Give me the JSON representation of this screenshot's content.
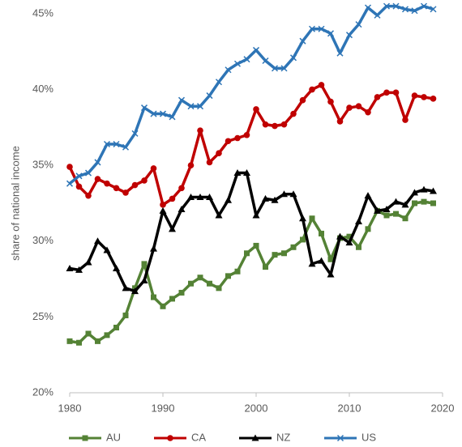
{
  "chart_data": {
    "type": "line",
    "y_label": "share of national income",
    "x": [
      1980,
      1981,
      1982,
      1983,
      1984,
      1985,
      1986,
      1987,
      1988,
      1989,
      1990,
      1991,
      1992,
      1993,
      1994,
      1995,
      1996,
      1997,
      1998,
      1999,
      2000,
      2001,
      2002,
      2003,
      2004,
      2005,
      2006,
      2007,
      2008,
      2009,
      2010,
      2011,
      2012,
      2013,
      2014,
      2015,
      2016,
      2017,
      2018,
      2019
    ],
    "series": [
      {
        "name": "AU",
        "color": "#548235",
        "marker": "square",
        "values": [
          23.4,
          23.3,
          23.9,
          23.4,
          23.8,
          24.3,
          25.1,
          26.9,
          28.5,
          26.3,
          25.7,
          26.2,
          26.6,
          27.2,
          27.6,
          27.2,
          26.9,
          27.7,
          28.0,
          29.2,
          29.7,
          28.3,
          29.1,
          29.2,
          29.6,
          30.1,
          31.5,
          30.5,
          28.8,
          30.2,
          30.3,
          29.6,
          30.8,
          32.0,
          31.7,
          31.8,
          31.5,
          32.5,
          32.6,
          32.5
        ]
      },
      {
        "name": "CA",
        "color": "#c00000",
        "marker": "circle",
        "values": [
          34.9,
          33.6,
          33.0,
          34.1,
          33.8,
          33.5,
          33.2,
          33.7,
          34.0,
          34.8,
          32.4,
          32.8,
          33.5,
          35.0,
          37.3,
          35.2,
          35.8,
          36.6,
          36.8,
          37.0,
          38.7,
          37.7,
          37.6,
          37.7,
          38.4,
          39.3,
          40.0,
          40.3,
          39.2,
          37.9,
          38.8,
          38.9,
          38.5,
          39.5,
          39.8,
          39.8,
          38.0,
          39.6,
          39.5,
          39.4
        ]
      },
      {
        "name": "NZ",
        "color": "#000000",
        "marker": "triangle",
        "values": [
          28.2,
          28.1,
          28.6,
          30.0,
          29.4,
          28.2,
          26.9,
          26.7,
          27.4,
          29.5,
          32.0,
          30.8,
          32.1,
          32.9,
          32.9,
          32.9,
          31.7,
          32.7,
          34.5,
          34.5,
          31.7,
          32.8,
          32.7,
          33.1,
          33.1,
          31.5,
          28.5,
          28.7,
          27.8,
          30.3,
          29.9,
          31.3,
          33.0,
          32.0,
          32.1,
          32.6,
          32.4,
          33.2,
          33.4,
          33.3
        ]
      },
      {
        "name": "US",
        "color": "#2e75b6",
        "marker": "cross",
        "values": [
          33.8,
          34.3,
          34.5,
          35.2,
          36.4,
          36.4,
          36.2,
          37.1,
          38.8,
          38.4,
          38.4,
          38.2,
          39.3,
          38.9,
          38.9,
          39.6,
          40.5,
          41.3,
          41.7,
          42.0,
          42.6,
          41.9,
          41.4,
          41.4,
          42.1,
          43.2,
          44.0,
          44.0,
          43.7,
          42.4,
          43.6,
          44.3,
          45.4,
          44.9,
          45.5,
          45.5,
          45.3,
          45.2,
          45.5,
          45.3
        ]
      }
    ],
    "xlim": [
      1980,
      2020
    ],
    "xticks": [
      1980,
      1990,
      2000,
      2010,
      2020
    ],
    "ylim": [
      20,
      45
    ],
    "yticks": [
      {
        "value": 20,
        "label": "20%"
      },
      {
        "value": 25,
        "label": "25%"
      },
      {
        "value": 30,
        "label": "30%"
      },
      {
        "value": 35,
        "label": "35%"
      },
      {
        "value": 40,
        "label": "40%"
      },
      {
        "value": 45,
        "label": "45%"
      }
    ],
    "grid": false,
    "legend": "bottom"
  }
}
